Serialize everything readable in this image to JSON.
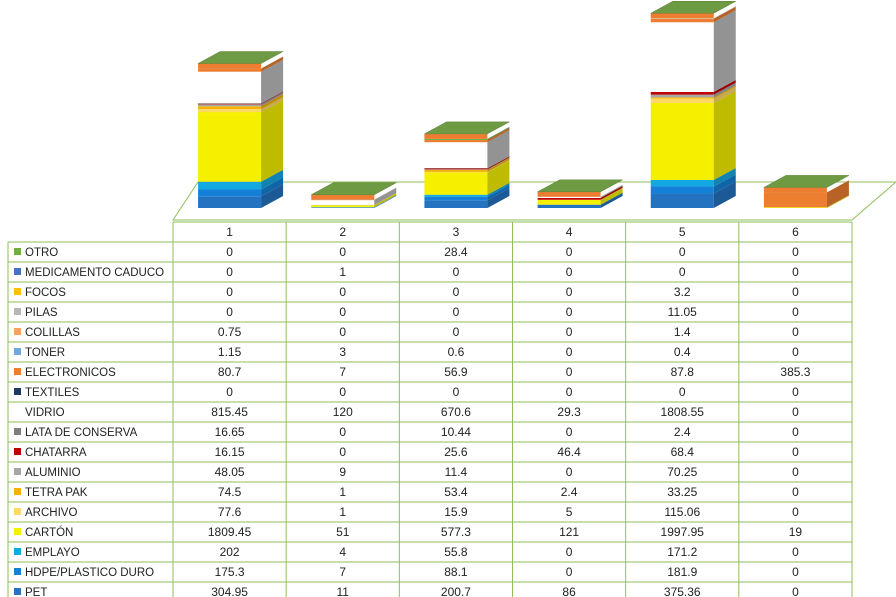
{
  "chart_data": {
    "type": "bar",
    "stacked": true,
    "three_d": true,
    "grid": false,
    "legend_position": "data-table-left",
    "categories": [
      "1",
      "2",
      "3",
      "4",
      "5",
      "6"
    ],
    "series": [
      {
        "name": "PET",
        "color": "#2373c1",
        "values": [
          "304.95",
          "11",
          "200.7",
          "86",
          "375.36",
          "0"
        ]
      },
      {
        "name": "HDPE/PLASTICO DURO",
        "color": "#1580d8",
        "values": [
          "175.3",
          "7",
          "88.1",
          "0",
          "181.9",
          "0"
        ]
      },
      {
        "name": "EMPLAYO",
        "color": "#14a8e2",
        "values": [
          "202",
          "4",
          "55.8",
          "0",
          "171.2",
          "0"
        ]
      },
      {
        "name": "CARTÓN",
        "color": "#f4f000",
        "values": [
          "1809.45",
          "51",
          "577.3",
          "121",
          "1997.95",
          "19"
        ]
      },
      {
        "name": "ARCHIVO",
        "color": "#ffd966",
        "values": [
          "77.6",
          "1",
          "15.9",
          "5",
          "115.06",
          "0"
        ]
      },
      {
        "name": "TETRA PAK",
        "color": "#f2b400",
        "values": [
          "74.5",
          "1",
          "53.4",
          "2.4",
          "33.25",
          "0"
        ]
      },
      {
        "name": "ALUMINIO",
        "color": "#a6a6a6",
        "values": [
          "48.05",
          "9",
          "11.4",
          "0",
          "70.25",
          "0"
        ]
      },
      {
        "name": "CHATARRA",
        "color": "#c00000",
        "values": [
          "16.15",
          "0",
          "25.6",
          "46.4",
          "68.4",
          "0"
        ]
      },
      {
        "name": "LATA DE CONSERVA",
        "color": "#7f7f7f",
        "values": [
          "16.65",
          "0",
          "10.44",
          "0",
          "2.4",
          "0"
        ]
      },
      {
        "name": "VIDRIO",
        "color": "#ffffff",
        "values": [
          "815.45",
          "120",
          "670.6",
          "29.3",
          "1808.55",
          "0"
        ]
      },
      {
        "name": "TEXTILES",
        "color": "#1f3864",
        "values": [
          "0",
          "0",
          "0",
          "0",
          "0",
          "0"
        ]
      },
      {
        "name": "ELECTRONICOS",
        "color": "#ed7d31",
        "values": [
          "80.7",
          "7",
          "56.9",
          "0",
          "87.8",
          "385.3"
        ]
      },
      {
        "name": "TONER",
        "color": "#6fa8dc",
        "values": [
          "1.15",
          "3",
          "0.6",
          "0",
          "0.4",
          "0"
        ]
      },
      {
        "name": "COLILLAS",
        "color": "#f4a460",
        "values": [
          "0.75",
          "0",
          "0",
          "0",
          "1.4",
          "0"
        ]
      },
      {
        "name": "PILAS",
        "color": "#b7b7b7",
        "values": [
          "0",
          "0",
          "0",
          "0",
          "11.05",
          "0"
        ]
      },
      {
        "name": "FOCOS",
        "color": "#ffc000",
        "values": [
          "0",
          "0",
          "0",
          "0",
          "3.2",
          "0"
        ]
      },
      {
        "name": "MEDICAMENTO CADUCO",
        "color": "#4472c4",
        "values": [
          "0",
          "1",
          "0",
          "0",
          "0",
          "0"
        ]
      },
      {
        "name": "OTRO",
        "color": "#70ad47",
        "values": [
          "0",
          "0",
          "28.4",
          "0",
          "0",
          "0"
        ]
      }
    ]
  }
}
